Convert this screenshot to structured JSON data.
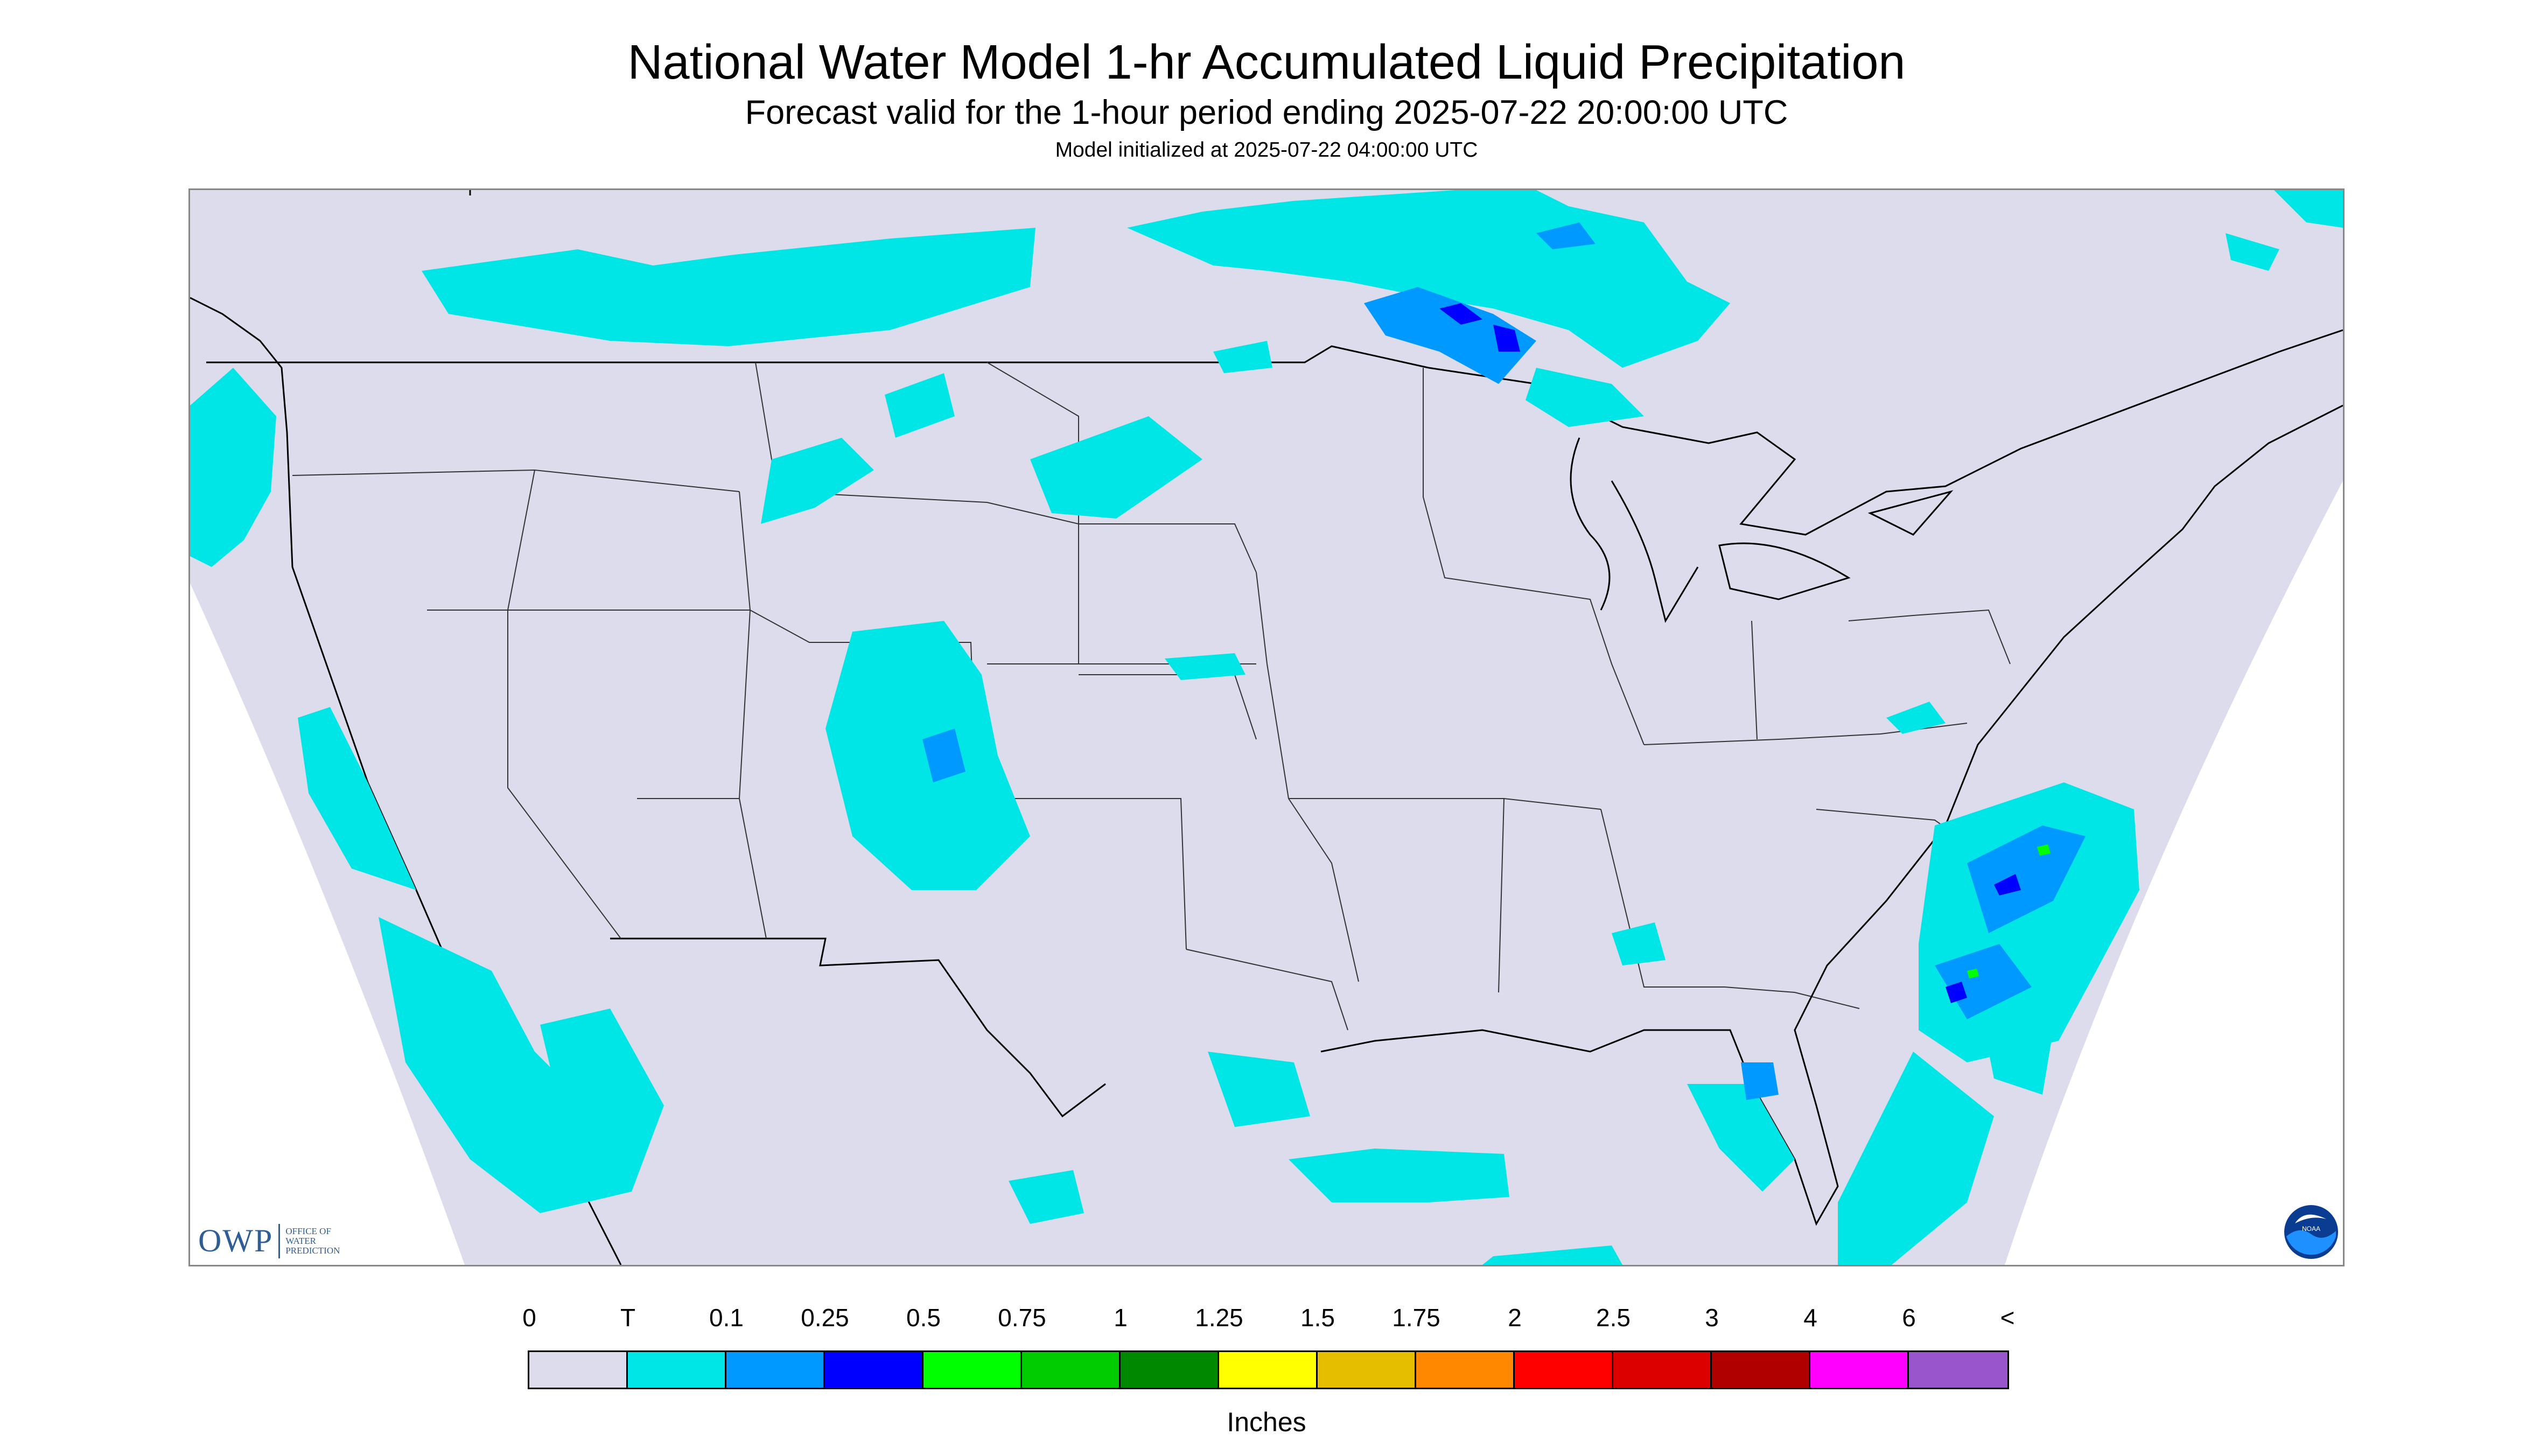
{
  "header": {
    "title": "National Water Model 1-hr Accumulated Liquid Precipitation",
    "subtitle": "Forecast valid for the 1-hour period ending 2025-07-22 20:00:00 UTC",
    "init": "Model initialized at 2025-07-22 04:00:00 UTC"
  },
  "logos": {
    "owp_mark": "OWP",
    "owp_text_line1": "OFFICE OF",
    "owp_text_line2": "WATER",
    "owp_text_line3": "PREDICTION",
    "noaa_text": "NOAA"
  },
  "colors": {
    "no_data": "#dcdcec",
    "trace": "#00e6e6",
    "light": "#0099ff",
    "moderate": "#0000ff",
    "heavy": "#00ff00"
  },
  "legend": {
    "units": "Inches",
    "labels": [
      "0",
      "T",
      "0.1",
      "0.25",
      "0.5",
      "0.75",
      "1",
      "1.25",
      "1.5",
      "1.75",
      "2",
      "2.5",
      "3",
      "4",
      "6",
      "<"
    ],
    "colors": [
      "#dcdcec",
      "#00e6e6",
      "#0099ff",
      "#0000ff",
      "#00ff00",
      "#00cc00",
      "#008800",
      "#ffff00",
      "#e6be00",
      "#ff8800",
      "#ff0000",
      "#dd0000",
      "#b00000",
      "#ff00ff",
      "#9955cc"
    ]
  }
}
